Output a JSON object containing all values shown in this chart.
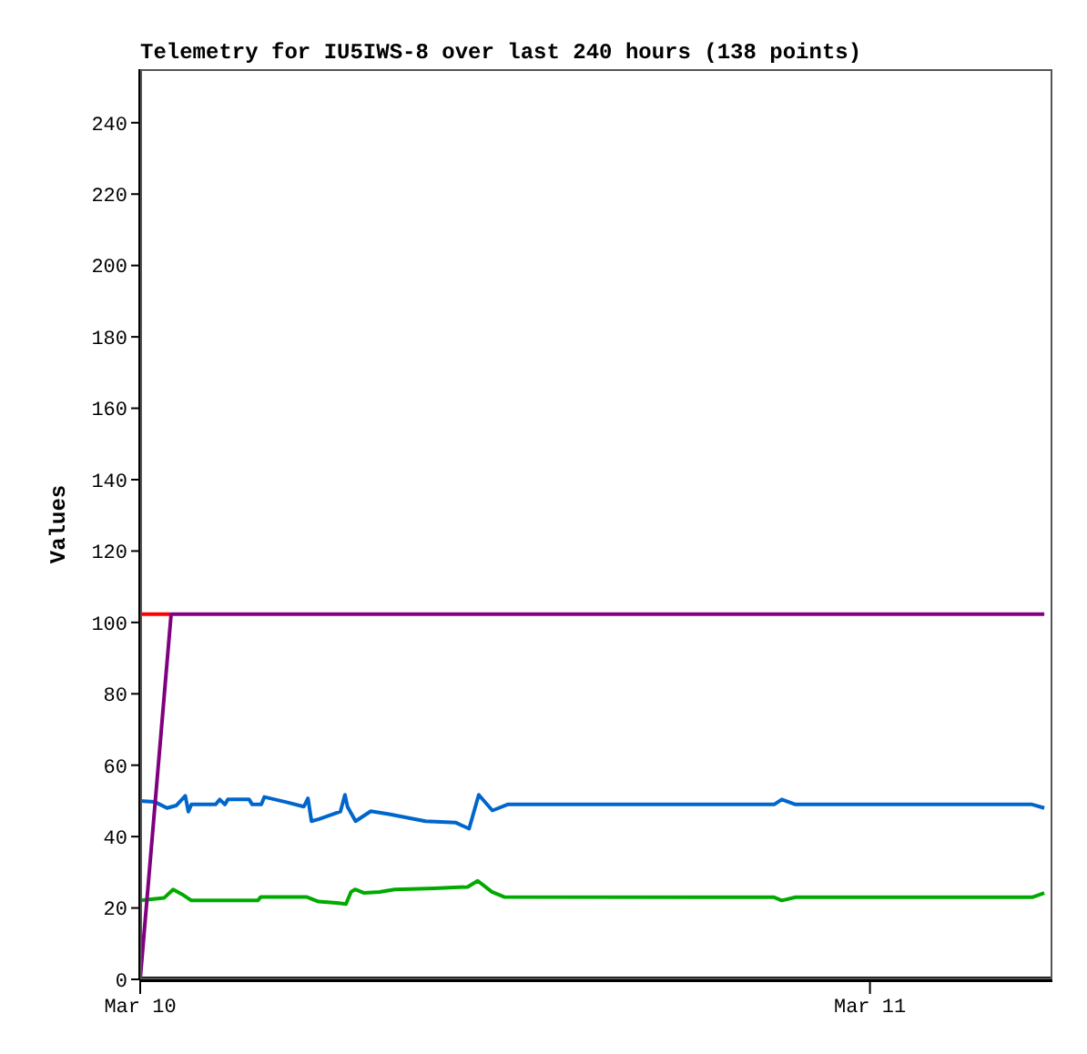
{
  "chart_data": {
    "type": "line",
    "title": "Telemetry for IU5IWS-8 over last 240 hours (138 points)",
    "ylabel": "Values",
    "xlim": [
      "--03-10T00:00",
      "--03-11T06:00"
    ],
    "xticks": [
      {
        "value": "--03-10",
        "label": "Mar 10"
      },
      {
        "value": "--03-11",
        "label": "Mar 11"
      }
    ],
    "ylim": [
      0,
      255
    ],
    "yticks": [
      0,
      20,
      40,
      60,
      80,
      100,
      120,
      140,
      160,
      180,
      200,
      220,
      240
    ],
    "grid": false,
    "legend": false,
    "marker": "none",
    "line_style": "solid",
    "series": [
      {
        "color": "#0066cc",
        "x": [
          "--03-10T00:00",
          "--03-10T00:29",
          "--03-10T00:53",
          "--03-10T01:11",
          "--03-10T01:29",
          "--03-10T01:35",
          "--03-10T01:41",
          "--03-10T02:29",
          "--03-10T02:37",
          "--03-10T02:47",
          "--03-10T02:53",
          "--03-10T03:35",
          "--03-10T03:41",
          "--03-10T03:59",
          "--03-10T04:05",
          "--03-10T04:47",
          "--03-10T05:23",
          "--03-10T05:31",
          "--03-10T05:38",
          "--03-10T05:53",
          "--03-10T06:35",
          "--03-10T06:44",
          "--03-10T06:49",
          "--03-10T07:05",
          "--03-10T07:35",
          "--03-10T08:11",
          "--03-10T09:23",
          "--03-10T10:23",
          "--03-10T10:49",
          "--03-10T11:08",
          "--03-10T11:35",
          "--03-10T12:05",
          "--03-10T20:51",
          "--03-10T21:06",
          "--03-10T21:33",
          "--03-11T05:20",
          "--03-11T05:44"
        ],
        "values": [
          50.0,
          49.7,
          48.0,
          48.7,
          51.4,
          47.0,
          49.0,
          49.0,
          50.4,
          49.0,
          50.4,
          50.4,
          49.0,
          49.0,
          51.1,
          49.7,
          48.4,
          50.7,
          44.3,
          44.9,
          47.0,
          51.7,
          48.4,
          44.3,
          47.1,
          46.3,
          44.3,
          43.9,
          42.2,
          51.7,
          47.3,
          49.0,
          49.0,
          50.4,
          49.0,
          49.0,
          48.0
        ]
      },
      {
        "color": "#00aa00",
        "x": [
          "--03-10T00:00",
          "--03-10T00:47",
          "--03-10T01:05",
          "--03-10T01:23",
          "--03-10T01:41",
          "--03-10T03:52",
          "--03-10T03:58",
          "--03-10T05:28",
          "--03-10T05:52",
          "--03-10T06:28",
          "--03-10T06:46",
          "--03-10T06:56",
          "--03-10T07:04",
          "--03-10T07:22",
          "--03-10T07:52",
          "--03-10T08:22",
          "--03-10T09:40",
          "--03-10T10:46",
          "--03-10T11:06",
          "--03-10T11:34",
          "--03-10T11:58",
          "--03-10T20:51",
          "--03-10T21:06",
          "--03-10T21:33",
          "--03-11T05:20",
          "--03-11T05:44"
        ],
        "values": [
          22.1,
          22.8,
          25.2,
          23.8,
          22.1,
          22.1,
          23.1,
          23.1,
          21.8,
          21.4,
          21.1,
          24.5,
          25.2,
          24.2,
          24.5,
          25.2,
          25.5,
          25.9,
          27.6,
          24.5,
          23.1,
          23.0,
          22.1,
          23.0,
          23.0,
          24.2
        ]
      },
      {
        "color": "#ff0000",
        "x": [
          "--03-10T00:00",
          "--03-10T00:59"
        ],
        "values": [
          102.3,
          102.3
        ]
      },
      {
        "color": "#800080",
        "x": [
          "--03-10T00:00",
          "--03-10T01:01",
          "--03-11T05:44"
        ],
        "values": [
          0,
          102.3,
          102.3
        ]
      }
    ]
  }
}
